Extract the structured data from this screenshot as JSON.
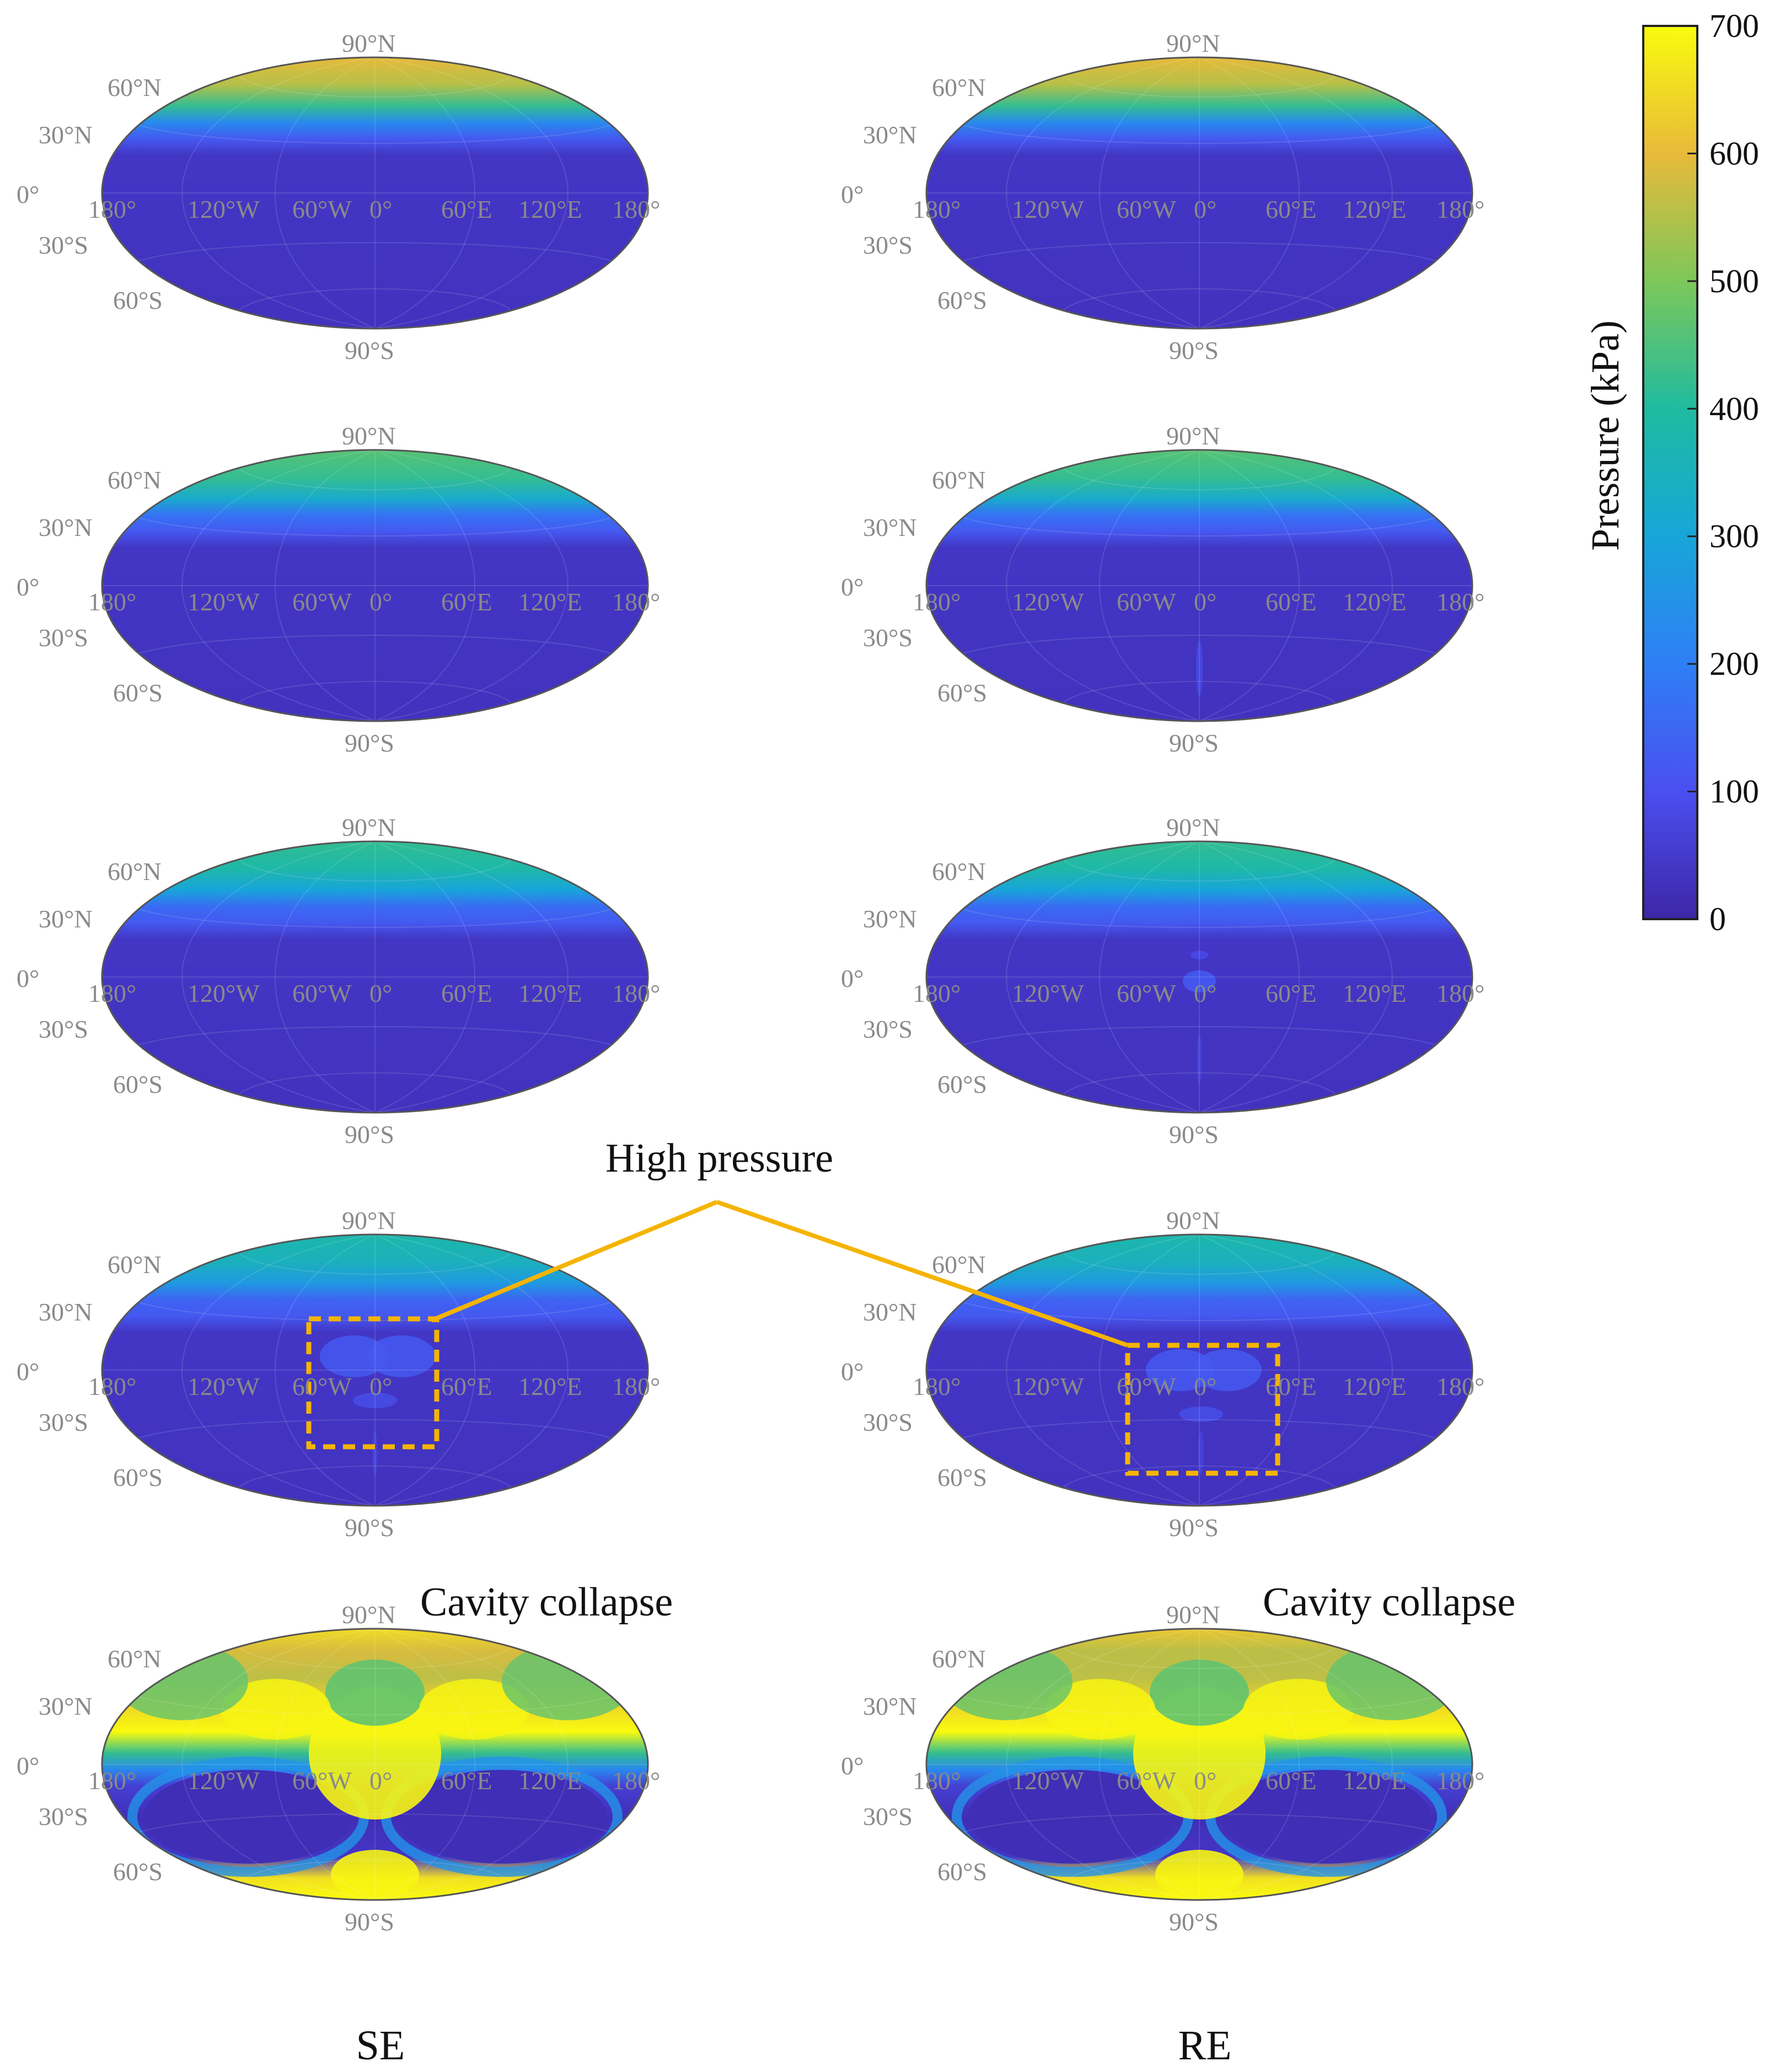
{
  "chart_data": {
    "type": "heatmap",
    "projection": "hammer-aitoff",
    "columns": [
      "SE",
      "RE"
    ],
    "lat_labels": [
      "90°N",
      "60°N",
      "30°N",
      "0°",
      "30°S",
      "60°S",
      "90°S"
    ],
    "lon_labels": [
      "180°",
      "120°W",
      "60°W",
      "0°",
      "60°E",
      "120°E",
      "180°"
    ],
    "colorbar": {
      "label": "Pressure (kPa)",
      "ticks": [
        0,
        100,
        200,
        300,
        400,
        500,
        600,
        700
      ],
      "range": [
        0,
        700
      ],
      "colors": [
        "#3e26a8",
        "#4a4ff0",
        "#2e7ff5",
        "#17a6d8",
        "#1fbba0",
        "#7dc75a",
        "#e8ba3a",
        "#f9fb0e"
      ]
    },
    "rows": [
      {
        "panels": [
          {
            "column": "SE",
            "top_pressure_kpa": 600,
            "state": "band"
          },
          {
            "column": "RE",
            "top_pressure_kpa": 600,
            "state": "band"
          }
        ]
      },
      {
        "panels": [
          {
            "column": "SE",
            "top_pressure_kpa": 460,
            "state": "band"
          },
          {
            "column": "RE",
            "top_pressure_kpa": 460,
            "state": "band-with-faint-spot"
          }
        ]
      },
      {
        "panels": [
          {
            "column": "SE",
            "top_pressure_kpa": 420,
            "state": "band"
          },
          {
            "column": "RE",
            "top_pressure_kpa": 420,
            "state": "band-with-center-spot"
          }
        ]
      },
      {
        "panels": [
          {
            "column": "SE",
            "top_pressure_kpa": 380,
            "state": "high-pressure-box"
          },
          {
            "column": "RE",
            "top_pressure_kpa": 380,
            "state": "high-pressure-box"
          }
        ]
      },
      {
        "panels": [
          {
            "column": "SE",
            "top_pressure_kpa": 650,
            "state": "collapse"
          },
          {
            "column": "RE",
            "top_pressure_kpa": 620,
            "state": "collapse"
          }
        ]
      }
    ],
    "annotations": {
      "high_pressure": "High pressure",
      "cavity_collapse": "Cavity collapse"
    }
  }
}
